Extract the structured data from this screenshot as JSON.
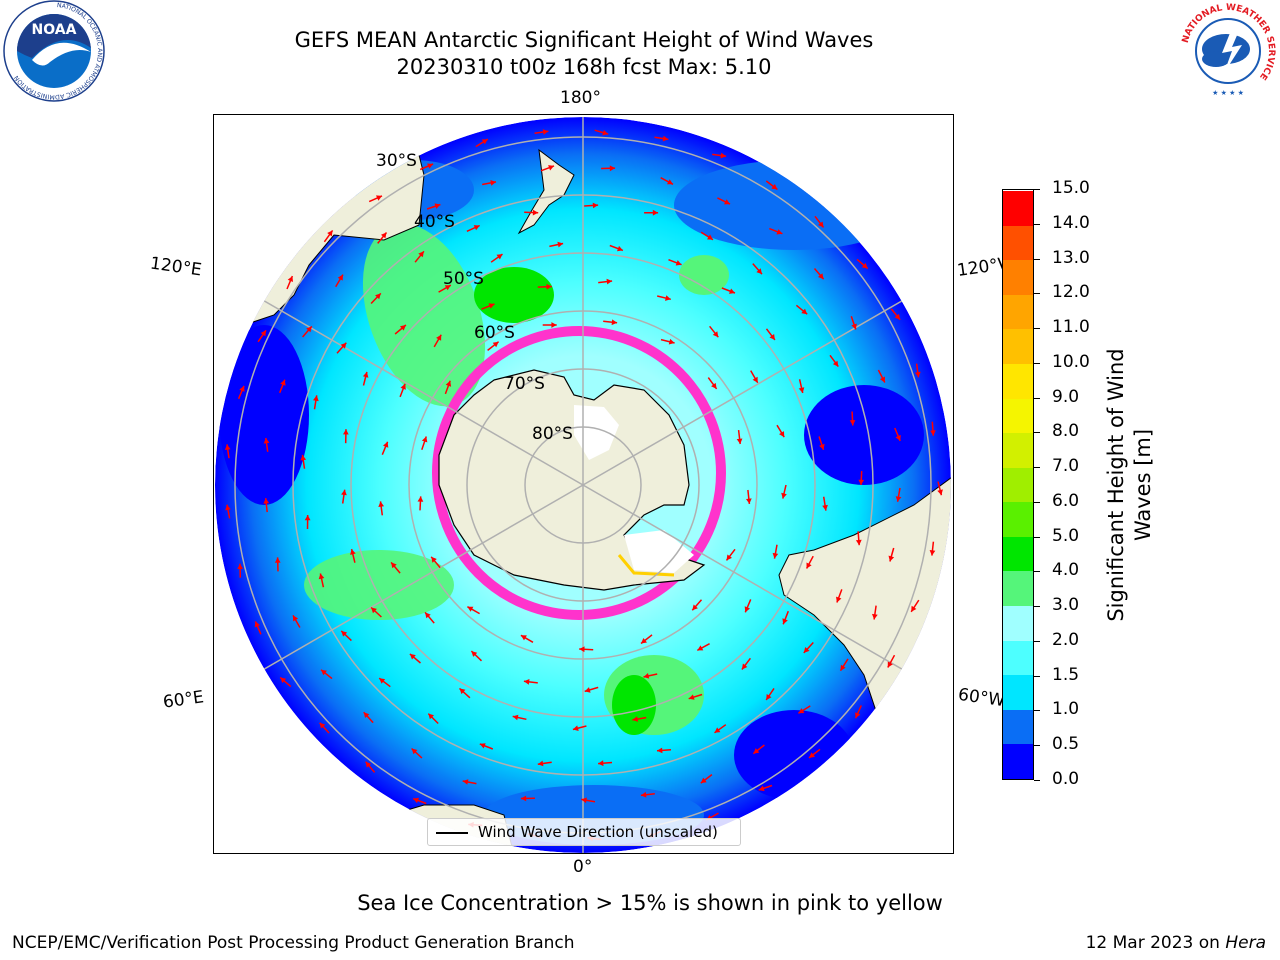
{
  "header": {
    "title_line1": "GEFS MEAN Antarctic Significant Height of Wind Waves",
    "title_line2": "20230310 t00z 168h fcst   Max: 5.10"
  },
  "logos": {
    "left": {
      "name": "NOAA",
      "ring_text": "NATIONAL OCEANIC AND ATMOSPHERIC ADMINISTRATION",
      "bottom_text": "U.S. DEPARTMENT OF COMMERCE"
    },
    "right": {
      "ring_text": "NATIONAL WEATHER SERVICE"
    }
  },
  "map": {
    "longitude_labels": {
      "top": "180°",
      "bottom": "0°",
      "left_upper": "120°E",
      "left_lower": "60°E",
      "right_upper": "120°W",
      "right_lower": "60°W"
    },
    "latitude_labels": [
      "30°S",
      "40°S",
      "50°S",
      "60°S",
      "70°S",
      "80°S"
    ],
    "legend_label": "Wind Wave Direction (unscaled)",
    "colors": {
      "land": "#efefdb",
      "grid": "#b0b0b0",
      "arrow": "#ff0000",
      "ice_low": "#ff33cc",
      "ice_high": "#ffff00"
    }
  },
  "colorbar": {
    "label_line1": "Significant Height of Wind",
    "label_line2": "Waves [m]",
    "ticks": [
      "0.0",
      "0.5",
      "1.0",
      "1.5",
      "2.0",
      "3.0",
      "4.0",
      "5.0",
      "6.0",
      "7.0",
      "8.0",
      "9.0",
      "10.0",
      "11.0",
      "12.0",
      "13.0",
      "14.0",
      "15.0"
    ],
    "bins": [
      "#0000ff",
      "#0a6ef5",
      "#00e6ff",
      "#4dffff",
      "#a0ffff",
      "#55f57a",
      "#00e600",
      "#5af000",
      "#a0ee00",
      "#d2f000",
      "#f5f500",
      "#ffe600",
      "#ffc000",
      "#ffa500",
      "#ff8000",
      "#ff5000",
      "#ff0000"
    ]
  },
  "footer": {
    "note": "Sea Ice Concentration > 15% is shown in pink to yellow",
    "credit_left": "NCEP/EMC/Verification Post Processing Product Generation Branch",
    "credit_date": "12 Mar 2023 on ",
    "credit_host": "Hera"
  }
}
